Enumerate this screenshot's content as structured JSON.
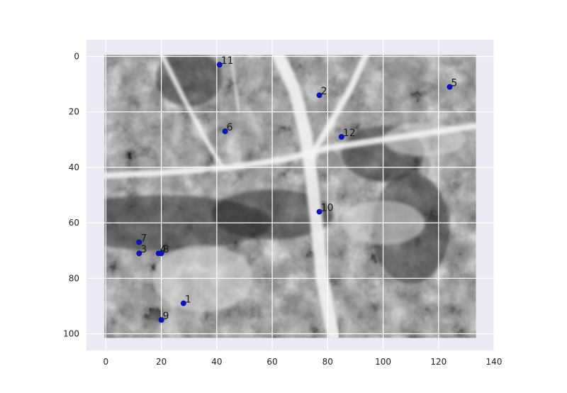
{
  "chart_data": {
    "type": "scatter",
    "title": "",
    "xlabel": "",
    "ylabel": "",
    "xlim": [
      -7,
      140
    ],
    "ylim": [
      106,
      -6
    ],
    "y_inverted": true,
    "grid": true,
    "background": "grayscale aerial image with white paths",
    "xticks": [
      0,
      20,
      40,
      60,
      80,
      100,
      120,
      140
    ],
    "yticks": [
      0,
      20,
      40,
      60,
      80,
      100
    ],
    "xtick_labels": [
      "0",
      "20",
      "40",
      "60",
      "80",
      "100",
      "120",
      "140"
    ],
    "ytick_labels": [
      "0",
      "20",
      "40",
      "60",
      "80",
      "100"
    ],
    "point_color": "#0a14c8",
    "points": [
      {
        "label": "1",
        "x": 28,
        "y": 89
      },
      {
        "label": "2",
        "x": 77,
        "y": 14
      },
      {
        "label": "3",
        "x": 12,
        "y": 71
      },
      {
        "label": "4",
        "x": 19,
        "y": 71
      },
      {
        "label": "5",
        "x": 124,
        "y": 11
      },
      {
        "label": "6",
        "x": 43,
        "y": 27
      },
      {
        "label": "7",
        "x": 12,
        "y": 67
      },
      {
        "label": "8",
        "x": 20,
        "y": 71
      },
      {
        "label": "9",
        "x": 20,
        "y": 95
      },
      {
        "label": "10",
        "x": 77,
        "y": 56
      },
      {
        "label": "11",
        "x": 41,
        "y": 3
      },
      {
        "label": "12",
        "x": 85,
        "y": 29
      }
    ]
  }
}
